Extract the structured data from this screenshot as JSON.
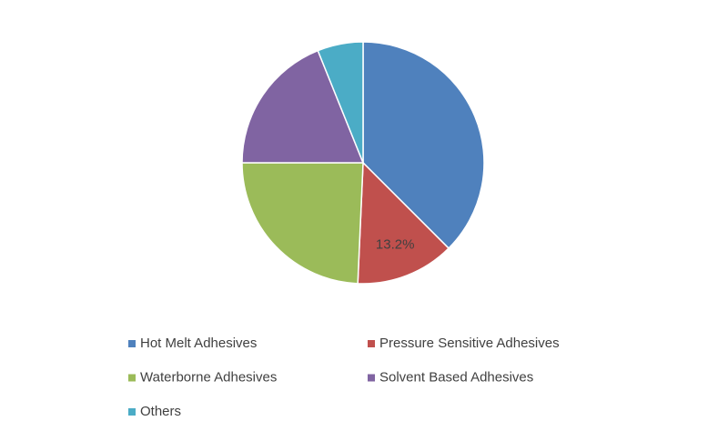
{
  "chart_data": {
    "type": "pie",
    "categories": [
      "Hot Melt Adhesives",
      "Pressure Sensitive Adhesives",
      "Waterborne Adhesives",
      "Solvent Based Adhesives",
      "Others"
    ],
    "values": [
      37.5,
      13.2,
      24.3,
      18.9,
      6.1
    ],
    "value_labels": [
      null,
      "13.2%",
      null,
      null,
      null
    ],
    "colors": [
      "#4f81bd",
      "#c0504d",
      "#9bbb59",
      "#8064a2",
      "#4bacc6"
    ],
    "legend": "bottom"
  }
}
